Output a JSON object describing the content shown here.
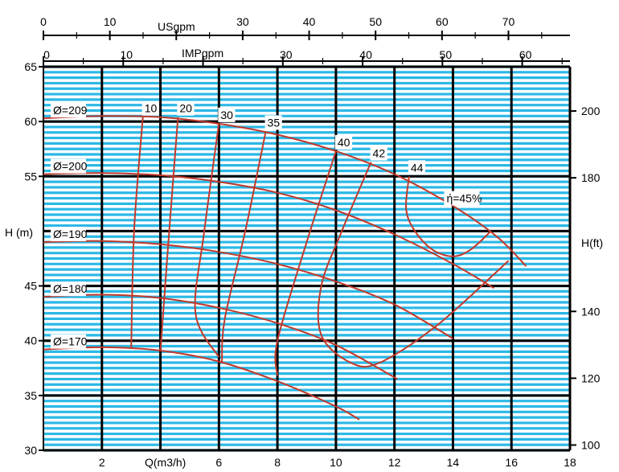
{
  "colors": {
    "grid_fine": "#2bb8e6",
    "grid_major": "#000000",
    "curve": "#c0392b",
    "label_bg": "#ffffff",
    "background": "#ffffff",
    "text": "#000000"
  },
  "chart_data": {
    "type": "line",
    "title": "",
    "xlabel": "Q(m3/h)",
    "ylabel": "H (m)",
    "ylabel_right": "H(ft)",
    "top_axis_us_label": "USgpm",
    "top_axis_imp_label": "IMPgpm",
    "xlim": [
      0,
      18
    ],
    "ylim": [
      30,
      65
    ],
    "grid": true,
    "x_ticks": [
      "2",
      "6",
      "8",
      "10",
      "12",
      "14",
      "16",
      "18"
    ],
    "y_ticks": [
      "30",
      "35",
      "40",
      "45",
      "55",
      "60",
      "65"
    ],
    "right_ticks": [
      "100",
      "120",
      "140",
      "180",
      "200"
    ],
    "us_ticks": [
      "0",
      "10",
      "30",
      "40",
      "50",
      "60",
      "70"
    ],
    "imp_ticks": [
      "0",
      "10",
      "30",
      "40",
      "50",
      "60"
    ],
    "impeller_labels": [
      "Ø=209",
      "Ø=200",
      "Ø=190",
      "Ø=180",
      "Ø=170"
    ],
    "efficiency_labels": [
      "10",
      "20",
      "30",
      "35",
      "40",
      "42",
      "44",
      "ή=45%"
    ],
    "series": [
      {
        "name": "Ø=209",
        "x": [
          0,
          2,
          4,
          6,
          8,
          10,
          12,
          14,
          15.5,
          16.5
        ],
        "y": [
          60.3,
          60.5,
          60.4,
          59.8,
          58.8,
          57.3,
          55.2,
          52.3,
          49.5,
          46.8
        ]
      },
      {
        "name": "Ø=200",
        "x": [
          0,
          2,
          4,
          6,
          8,
          10,
          12,
          14,
          15.4
        ],
        "y": [
          55.2,
          55.3,
          55.1,
          54.5,
          53.5,
          51.9,
          49.7,
          47.0,
          44.8
        ]
      },
      {
        "name": "Ø=190",
        "x": [
          0,
          2,
          4,
          6,
          8,
          10,
          12,
          14
        ],
        "y": [
          49.0,
          49.1,
          48.8,
          48.1,
          47.0,
          45.4,
          43.3,
          40.2
        ]
      },
      {
        "name": "Ø=180",
        "x": [
          0,
          2,
          4,
          6,
          8,
          10,
          12.1
        ],
        "y": [
          44.0,
          44.2,
          43.9,
          43.0,
          41.6,
          39.6,
          36.5
        ]
      },
      {
        "name": "Ø=170",
        "x": [
          0,
          2,
          4,
          6,
          8,
          10,
          10.8
        ],
        "y": [
          39.2,
          39.4,
          39.1,
          38.1,
          36.3,
          34.0,
          32.8
        ]
      }
    ],
    "efficiency_curves": [
      {
        "name": "10",
        "x": [
          3.4,
          3.1,
          3.0
        ],
        "y": [
          60.4,
          50.0,
          39.3
        ]
      },
      {
        "name": "20",
        "x": [
          4.6,
          4.3,
          4.0
        ],
        "y": [
          60.4,
          50.0,
          39.1
        ]
      },
      {
        "name": "30",
        "x": [
          6.0,
          5.5,
          5.2,
          6.0
        ],
        "y": [
          59.8,
          50.0,
          42.5,
          38.5
        ]
      },
      {
        "name": "35",
        "x": [
          7.6,
          6.9,
          6.2,
          6.1
        ],
        "y": [
          59.1,
          50.0,
          42.0,
          38.0
        ]
      },
      {
        "name": "40",
        "x": [
          10.0,
          9.0,
          8.0,
          8.0
        ],
        "y": [
          57.3,
          49.0,
          40.0,
          36.8
        ]
      },
      {
        "name": "42",
        "x": [
          11.2,
          10.2,
          9.5,
          9.5,
          10.5,
          11.5,
          13.5,
          15.9
        ],
        "y": [
          56.3,
          50.0,
          45.0,
          40.5,
          38.0,
          38.0,
          41.5,
          47.3
        ]
      },
      {
        "name": "44",
        "x": [
          12.5,
          12.4,
          12.7,
          13.3,
          14.0,
          14.6,
          15.3
        ],
        "y": [
          55.0,
          52.0,
          50.0,
          48.3,
          47.7,
          48.3,
          50.0
        ]
      }
    ],
    "bep_point": {
      "label": "ή=45%",
      "x": 14,
      "y": 53
    }
  }
}
